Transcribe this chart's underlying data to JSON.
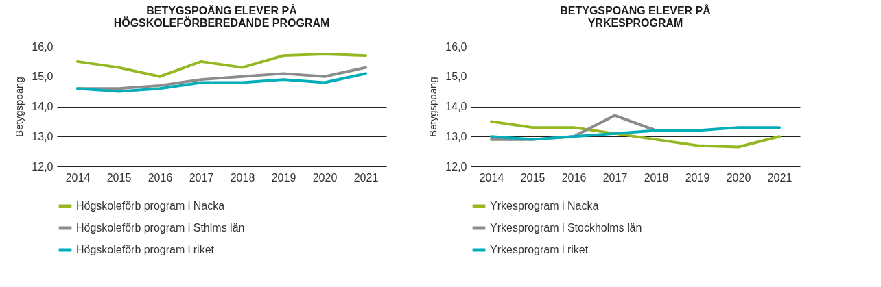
{
  "chart_data": [
    {
      "type": "line",
      "title": "BETYGSPOÄNG ELEVER PÅ HÖGSKOLEFÖRBEREDANDE PROGRAM",
      "ylabel": "Betygspoäng",
      "categories": [
        "2014",
        "2015",
        "2016",
        "2017",
        "2018",
        "2019",
        "2020",
        "2021"
      ],
      "series": [
        {
          "name": "Högskoleförb program i Nacka",
          "color": "#95b822",
          "values": [
            15.5,
            15.3,
            15.0,
            15.5,
            15.3,
            15.7,
            15.75,
            15.7
          ]
        },
        {
          "name": "Högskoleförb program i Sthlms län",
          "color": "#8c8c8c",
          "values": [
            14.6,
            14.6,
            14.7,
            14.9,
            15.0,
            15.1,
            15.0,
            15.3
          ]
        },
        {
          "name": "Högskoleförb program i riket",
          "color": "#00adb9",
          "values": [
            14.6,
            14.5,
            14.6,
            14.8,
            14.8,
            14.9,
            14.8,
            15.1
          ]
        }
      ],
      "ylim": [
        12,
        16
      ],
      "yticks": [
        {
          "value": 12,
          "label": "12,0"
        },
        {
          "value": 13,
          "label": "13,0"
        },
        {
          "value": 14,
          "label": "14,0"
        },
        {
          "value": 15,
          "label": "15,0"
        },
        {
          "value": 16,
          "label": "16,0"
        }
      ],
      "grid": "y",
      "legend": "bottom",
      "marker": "none",
      "line_style": "solid"
    },
    {
      "type": "line",
      "title": "BETYGSPOÄNG ELEVER PÅ YRKESPROGRAM",
      "ylabel": "Betygspoäng",
      "categories": [
        "2014",
        "2015",
        "2016",
        "2017",
        "2018",
        "2019",
        "2020",
        "2021"
      ],
      "series": [
        {
          "name": "Yrkesprogram i Nacka",
          "color": "#95b822",
          "values": [
            13.5,
            13.3,
            13.3,
            13.1,
            12.9,
            12.7,
            12.65,
            13.0
          ]
        },
        {
          "name": "Yrkesprogram i Stockholms län",
          "color": "#8c8c8c",
          "values": [
            12.9,
            12.9,
            13.0,
            13.7,
            13.2,
            13.2,
            null,
            null
          ]
        },
        {
          "name": "Yrkesprogram i riket",
          "color": "#00adb9",
          "values": [
            13.0,
            12.9,
            13.0,
            13.1,
            13.2,
            13.2,
            13.3,
            13.3
          ]
        }
      ],
      "ylim": [
        12,
        16
      ],
      "yticks": [
        {
          "value": 12,
          "label": "12,0"
        },
        {
          "value": 13,
          "label": "13,0"
        },
        {
          "value": 14,
          "label": "14,0"
        },
        {
          "value": 15,
          "label": "15,0"
        },
        {
          "value": 16,
          "label": "16,0"
        }
      ],
      "grid": "y",
      "legend": "bottom",
      "marker": "none",
      "line_style": "solid"
    }
  ]
}
